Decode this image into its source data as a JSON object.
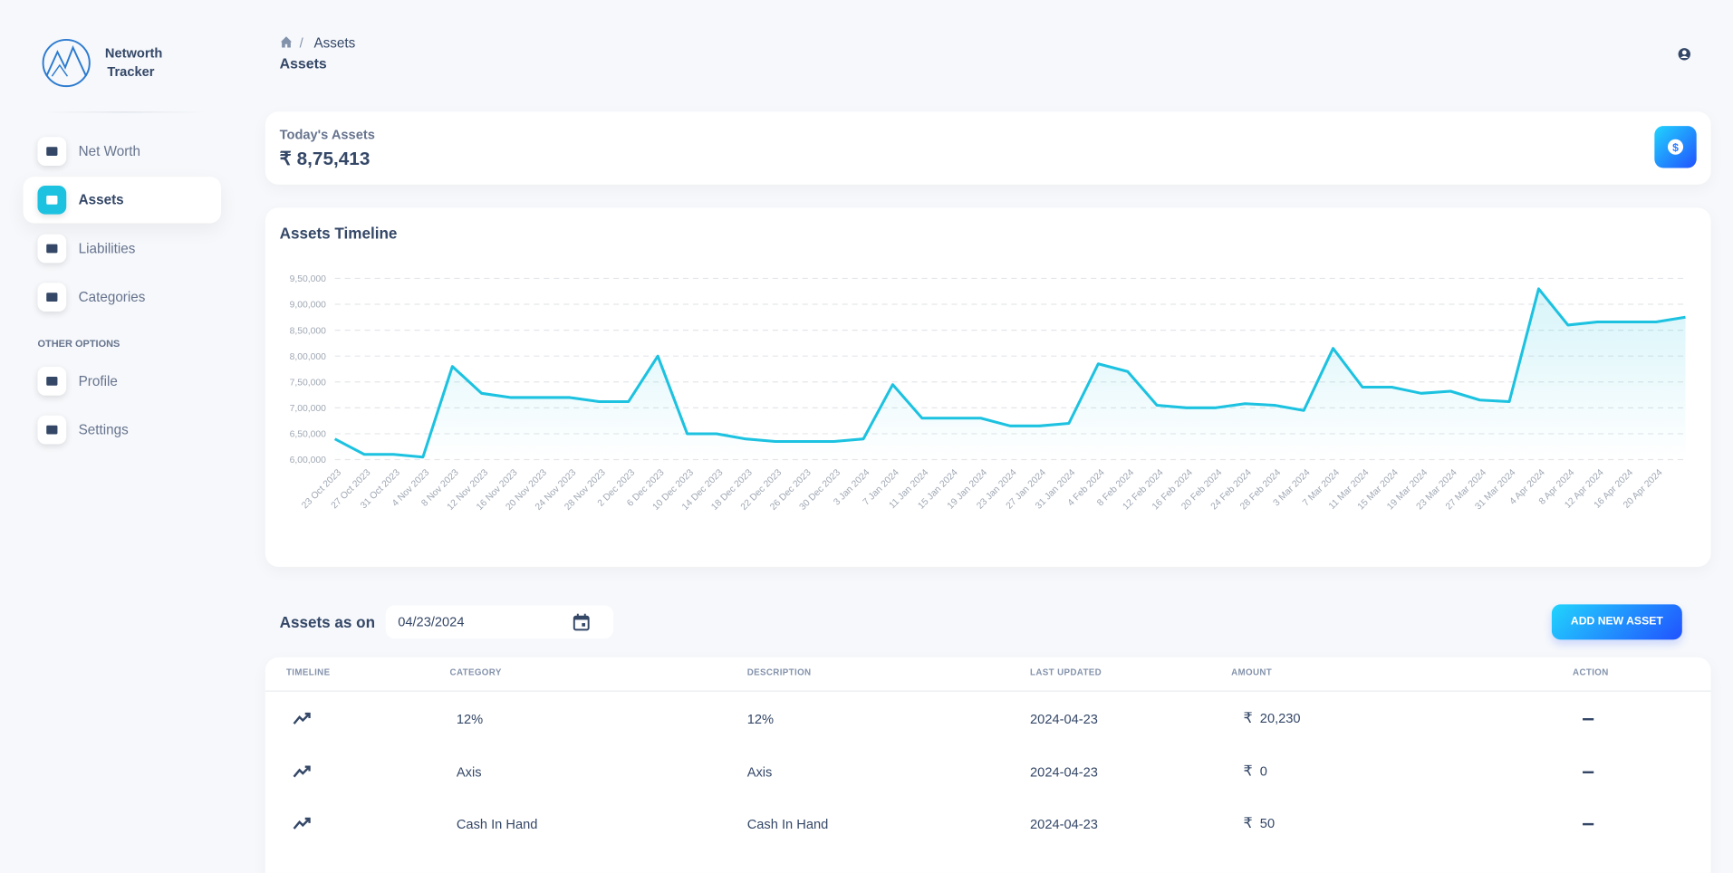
{
  "sidebar": {
    "brand": [
      "Networth",
      "Tracker"
    ],
    "nav": [
      "Net Worth",
      "Assets",
      "Liabilities",
      "Categories"
    ],
    "section_label": "OTHER OPTIONS",
    "other": [
      "Profile",
      "Settings"
    ]
  },
  "header": {
    "breadcrumb": "Assets",
    "title": "Assets"
  },
  "summary": {
    "label": "Today's Assets",
    "value": "₹ 8,75,413"
  },
  "chart_data": {
    "type": "line",
    "title": "Assets Timeline",
    "color": "#1cc2e0",
    "grid": true,
    "categories": [
      "23 Oct 2023",
      "27 Oct 2023",
      "31 Oct 2023",
      "4 Nov 2023",
      "8 Nov 2023",
      "12 Nov 2023",
      "16 Nov 2023",
      "20 Nov 2023",
      "24 Nov 2023",
      "28 Nov 2023",
      "2 Dec 2023",
      "6 Dec 2023",
      "10 Dec 2023",
      "14 Dec 2023",
      "18 Dec 2023",
      "22 Dec 2023",
      "26 Dec 2023",
      "30 Dec 2023",
      "3 Jan 2024",
      "7 Jan 2024",
      "11 Jan 2024",
      "15 Jan 2024",
      "19 Jan 2024",
      "23 Jan 2024",
      "27 Jan 2024",
      "31 Jan 2024",
      "4 Feb 2024",
      "8 Feb 2024",
      "12 Feb 2024",
      "16 Feb 2024",
      "20 Feb 2024",
      "24 Feb 2024",
      "28 Feb 2024",
      "3 Mar 2024",
      "7 Mar 2024",
      "11 Mar 2024",
      "15 Mar 2024",
      "19 Mar 2024",
      "23 Mar 2024",
      "27 Mar 2024",
      "31 Mar 2024",
      "4 Apr 2024",
      "8 Apr 2024",
      "12 Apr 2024",
      "16 Apr 2024",
      "20 Apr 2024",
      null
    ],
    "values": [
      640000,
      610000,
      610000,
      605000,
      780000,
      728000,
      720000,
      720000,
      720000,
      712000,
      712000,
      800000,
      650000,
      650000,
      640000,
      635000,
      635000,
      635000,
      640000,
      745000,
      680000,
      680000,
      680000,
      665000,
      665000,
      670000,
      785000,
      770000,
      705000,
      700000,
      700000,
      708000,
      705000,
      695000,
      815000,
      740000,
      740000,
      728000,
      732000,
      715000,
      712000,
      930000,
      860000,
      866000,
      866000,
      866000,
      875000
    ],
    "ylim": [
      600000,
      950000
    ],
    "yticks": [
      {
        "value": 600000,
        "label": "6,00,000"
      },
      {
        "value": 650000,
        "label": "6,50,000"
      },
      {
        "value": 700000,
        "label": "7,00,000"
      },
      {
        "value": 750000,
        "label": "7,50,000"
      },
      {
        "value": 800000,
        "label": "8,00,000"
      },
      {
        "value": 850000,
        "label": "8,50,000"
      },
      {
        "value": 900000,
        "label": "9,00,000"
      },
      {
        "value": 950000,
        "label": "9,50,000"
      }
    ]
  },
  "table": {
    "title": "Assets as on",
    "date": "04/23/2024",
    "button": "ADD NEW ASSET",
    "currency": "₹",
    "columns": [
      "TIMELINE",
      "CATEGORY",
      "DESCRIPTION",
      "LAST UPDATED",
      "AMOUNT",
      "ACTION"
    ],
    "rows": [
      [
        "12%",
        "12%",
        "2024-04-23",
        "20,230"
      ],
      [
        "Axis",
        "Axis",
        "2024-04-23",
        "0"
      ],
      [
        "Cash In Hand",
        "Cash In Hand",
        "2024-04-23",
        "50"
      ]
    ]
  }
}
